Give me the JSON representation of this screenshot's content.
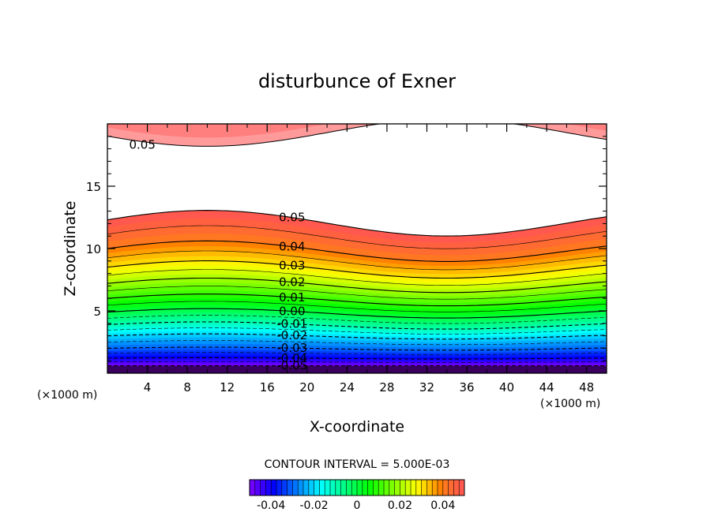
{
  "chart_data": {
    "type": "contour",
    "title": "disturbunce of Exner",
    "xlabel": "X-coordinate",
    "ylabel": "Z-coordinate",
    "x_unit_left": "(×1000 m)",
    "x_unit_right": "(×1000 m)",
    "xlim": [
      0,
      50
    ],
    "ylim": [
      0,
      20
    ],
    "x_ticks": [
      4,
      8,
      12,
      16,
      20,
      24,
      28,
      32,
      36,
      40,
      44,
      48
    ],
    "x_tick_labels": [
      "4",
      "8",
      "12",
      "16",
      "20",
      "24",
      "28",
      "32",
      "36",
      "40",
      "44",
      "48"
    ],
    "y_ticks": [
      5,
      10,
      15
    ],
    "y_tick_labels": [
      "5",
      "10",
      "15"
    ],
    "contour_interval_text": "CONTOUR INTERVAL = 5.000E-03",
    "contour_interval": 0.005,
    "labelled_levels": [
      {
        "text": "0.05",
        "level": 0.05
      },
      {
        "text": "0.05",
        "level": 0.05
      },
      {
        "text": "0.04",
        "level": 0.04
      },
      {
        "text": "0.03",
        "level": 0.03
      },
      {
        "text": "0.02",
        "level": 0.02
      },
      {
        "text": "0.01",
        "level": 0.01
      },
      {
        "text": "0.00",
        "level": 0.0
      },
      {
        "text": "-0.01",
        "level": -0.01
      },
      {
        "text": "-0.02",
        "level": -0.02
      },
      {
        "text": "-0.03",
        "level": -0.03
      },
      {
        "text": "-0.04",
        "level": -0.04
      },
      {
        "text": "-0.05",
        "level": -0.05
      }
    ],
    "colorbar": {
      "min": -0.05,
      "max": 0.05,
      "tick_values": [
        -0.04,
        -0.02,
        0,
        0.02,
        0.04
      ],
      "tick_labels": [
        "-0.04",
        "-0.02",
        "0",
        "0.02",
        "0.04"
      ]
    },
    "level_z_at_x0": {
      "levels": [
        -0.05,
        -0.04,
        -0.03,
        -0.02,
        -0.01,
        0.0,
        0.01,
        0.02,
        0.03,
        0.04,
        0.05
      ],
      "z": [
        0.6,
        1.2,
        2.0,
        3.0,
        3.9,
        4.9,
        6.0,
        7.2,
        8.5,
        10.0,
        12.3
      ]
    },
    "wave": {
      "crest_x": 10,
      "trough_x": 34,
      "amplitude_at_z12": 1.0,
      "upper_region_level": 0.05,
      "upper_region_min_z": 18.2,
      "upper_region_crest_x": 10
    }
  }
}
